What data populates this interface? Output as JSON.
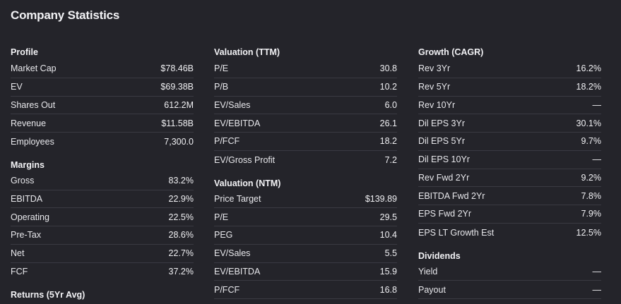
{
  "title": "Company Statistics",
  "col1": {
    "sections": [
      {
        "heading": "Profile",
        "rows": [
          {
            "label": "Market Cap",
            "value": "$78.46B"
          },
          {
            "label": "EV",
            "value": "$69.38B"
          },
          {
            "label": "Shares Out",
            "value": "612.2M"
          },
          {
            "label": "Revenue",
            "value": "$11.58B"
          },
          {
            "label": "Employees",
            "value": "7,300.0"
          }
        ]
      },
      {
        "heading": "Margins",
        "rows": [
          {
            "label": "Gross",
            "value": "83.2%"
          },
          {
            "label": "EBITDA",
            "value": "22.9%"
          },
          {
            "label": "Operating",
            "value": "22.5%"
          },
          {
            "label": "Pre-Tax",
            "value": "28.6%"
          },
          {
            "label": "Net",
            "value": "22.7%"
          },
          {
            "label": "FCF",
            "value": "37.2%"
          }
        ]
      },
      {
        "heading": "Returns (5Yr Avg)",
        "rows": []
      }
    ]
  },
  "col2": {
    "sections": [
      {
        "heading": "Valuation (TTM)",
        "rows": [
          {
            "label": "P/E",
            "value": "30.8"
          },
          {
            "label": "P/B",
            "value": "10.2"
          },
          {
            "label": "EV/Sales",
            "value": "6.0"
          },
          {
            "label": "EV/EBITDA",
            "value": "26.1"
          },
          {
            "label": "P/FCF",
            "value": "18.2"
          },
          {
            "label": "EV/Gross Profit",
            "value": "7.2"
          }
        ]
      },
      {
        "heading": "Valuation (NTM)",
        "rows": [
          {
            "label": "Price Target",
            "value": "$139.89"
          },
          {
            "label": "P/E",
            "value": "29.5"
          },
          {
            "label": "PEG",
            "value": "10.4"
          },
          {
            "label": "EV/Sales",
            "value": "5.5"
          },
          {
            "label": "EV/EBITDA",
            "value": "15.9"
          },
          {
            "label": "P/FCF",
            "value": "16.8"
          }
        ]
      }
    ]
  },
  "col3": {
    "sections": [
      {
        "heading": "Growth (CAGR)",
        "rows": [
          {
            "label": "Rev 3Yr",
            "value": "16.2%"
          },
          {
            "label": "Rev 5Yr",
            "value": "18.2%"
          },
          {
            "label": "Rev 10Yr",
            "value": "—"
          },
          {
            "label": "Dil EPS 3Yr",
            "value": "30.1%"
          },
          {
            "label": "Dil EPS 5Yr",
            "value": "9.7%"
          },
          {
            "label": "Dil EPS 10Yr",
            "value": "—"
          },
          {
            "label": "Rev Fwd 2Yr",
            "value": "9.2%"
          },
          {
            "label": "EBITDA Fwd 2Yr",
            "value": "7.8%"
          },
          {
            "label": "EPS Fwd 2Yr",
            "value": "7.9%"
          },
          {
            "label": "EPS LT Growth Est",
            "value": "12.5%"
          }
        ]
      },
      {
        "heading": "Dividends",
        "rows": [
          {
            "label": "Yield",
            "value": "—"
          },
          {
            "label": "Payout",
            "value": "—"
          }
        ]
      }
    ]
  }
}
